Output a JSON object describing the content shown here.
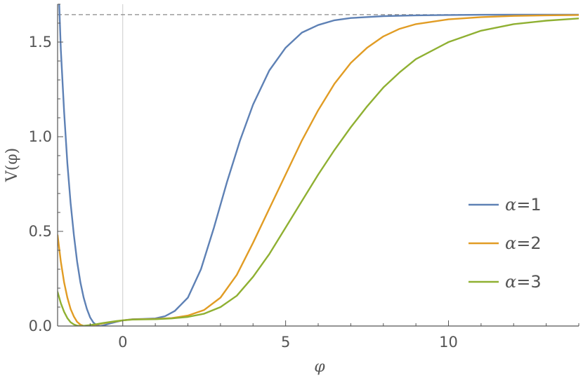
{
  "chart_data": {
    "type": "line",
    "title": "",
    "xlabel": "φ",
    "ylabel": "V(φ)",
    "xlim": [
      -2,
      14
    ],
    "ylim": [
      0,
      1.7
    ],
    "x_ticks": [
      0,
      5,
      10
    ],
    "y_ticks": [
      0.0,
      0.5,
      1.0,
      1.5
    ],
    "x_tick_labels": [
      "0",
      "5",
      "10"
    ],
    "y_tick_labels": [
      "0.0",
      "0.5",
      "1.0",
      "1.5"
    ],
    "asymptote": 1.645,
    "grid": false,
    "legend_position": "right",
    "colors": {
      "alpha1": "#5e81b5",
      "alpha2": "#e19c24",
      "alpha3": "#8fb032",
      "asymptote": "#888888",
      "frame": "#555555",
      "zero_line": "#cccccc"
    },
    "series": [
      {
        "name": "α=1",
        "color": "#5e81b5",
        "points": [
          [
            -1.95,
            1.7
          ],
          [
            -1.9,
            1.46
          ],
          [
            -1.8,
            1.13
          ],
          [
            -1.7,
            0.86
          ],
          [
            -1.6,
            0.65
          ],
          [
            -1.5,
            0.48
          ],
          [
            -1.4,
            0.34
          ],
          [
            -1.3,
            0.23
          ],
          [
            -1.2,
            0.15
          ],
          [
            -1.1,
            0.09
          ],
          [
            -1.0,
            0.045
          ],
          [
            -0.9,
            0.018
          ],
          [
            -0.8,
            0.004
          ],
          [
            -0.7,
            0.0
          ],
          [
            -0.6,
            0.003
          ],
          [
            -0.4,
            0.013
          ],
          [
            -0.2,
            0.022
          ],
          [
            0.0,
            0.03
          ],
          [
            0.3,
            0.036
          ],
          [
            0.6,
            0.037
          ],
          [
            1.0,
            0.04
          ],
          [
            1.3,
            0.052
          ],
          [
            1.6,
            0.08
          ],
          [
            2.0,
            0.15
          ],
          [
            2.4,
            0.3
          ],
          [
            2.8,
            0.52
          ],
          [
            3.2,
            0.76
          ],
          [
            3.6,
            0.98
          ],
          [
            4.0,
            1.17
          ],
          [
            4.5,
            1.35
          ],
          [
            5.0,
            1.47
          ],
          [
            5.5,
            1.55
          ],
          [
            6.0,
            1.59
          ],
          [
            6.5,
            1.615
          ],
          [
            7.0,
            1.627
          ],
          [
            8.0,
            1.637
          ],
          [
            9.0,
            1.641
          ],
          [
            10.0,
            1.643
          ],
          [
            11.0,
            1.644
          ],
          [
            12.0,
            1.645
          ],
          [
            13.0,
            1.645
          ],
          [
            14.0,
            1.645
          ]
        ]
      },
      {
        "name": "α=2",
        "color": "#e19c24",
        "points": [
          [
            -2.0,
            0.48
          ],
          [
            -1.9,
            0.34
          ],
          [
            -1.8,
            0.23
          ],
          [
            -1.7,
            0.15
          ],
          [
            -1.6,
            0.09
          ],
          [
            -1.5,
            0.05
          ],
          [
            -1.4,
            0.022
          ],
          [
            -1.3,
            0.007
          ],
          [
            -1.2,
            0.001
          ],
          [
            -1.1,
            0.0
          ],
          [
            -1.0,
            0.002
          ],
          [
            -0.8,
            0.008
          ],
          [
            -0.6,
            0.014
          ],
          [
            -0.4,
            0.02
          ],
          [
            -0.2,
            0.025
          ],
          [
            0.0,
            0.03
          ],
          [
            0.3,
            0.035
          ],
          [
            0.6,
            0.036
          ],
          [
            1.0,
            0.037
          ],
          [
            1.5,
            0.042
          ],
          [
            2.0,
            0.055
          ],
          [
            2.5,
            0.085
          ],
          [
            3.0,
            0.15
          ],
          [
            3.5,
            0.27
          ],
          [
            4.0,
            0.44
          ],
          [
            4.5,
            0.62
          ],
          [
            5.0,
            0.8
          ],
          [
            5.5,
            0.98
          ],
          [
            6.0,
            1.14
          ],
          [
            6.5,
            1.28
          ],
          [
            7.0,
            1.39
          ],
          [
            7.5,
            1.47
          ],
          [
            8.0,
            1.53
          ],
          [
            8.5,
            1.57
          ],
          [
            9.0,
            1.595
          ],
          [
            10.0,
            1.62
          ],
          [
            11.0,
            1.632
          ],
          [
            12.0,
            1.638
          ],
          [
            13.0,
            1.641
          ],
          [
            14.0,
            1.643
          ]
        ]
      },
      {
        "name": "α=3",
        "color": "#8fb032",
        "points": [
          [
            -2.0,
            0.18
          ],
          [
            -1.9,
            0.12
          ],
          [
            -1.8,
            0.075
          ],
          [
            -1.7,
            0.042
          ],
          [
            -1.6,
            0.02
          ],
          [
            -1.5,
            0.008
          ],
          [
            -1.4,
            0.002
          ],
          [
            -1.3,
            0.0
          ],
          [
            -1.2,
            0.001
          ],
          [
            -1.0,
            0.005
          ],
          [
            -0.8,
            0.01
          ],
          [
            -0.6,
            0.016
          ],
          [
            -0.4,
            0.021
          ],
          [
            -0.2,
            0.026
          ],
          [
            0.0,
            0.03
          ],
          [
            0.3,
            0.034
          ],
          [
            0.6,
            0.035
          ],
          [
            1.0,
            0.036
          ],
          [
            1.5,
            0.04
          ],
          [
            2.0,
            0.048
          ],
          [
            2.5,
            0.065
          ],
          [
            3.0,
            0.1
          ],
          [
            3.5,
            0.16
          ],
          [
            4.0,
            0.26
          ],
          [
            4.5,
            0.38
          ],
          [
            5.0,
            0.52
          ],
          [
            5.5,
            0.66
          ],
          [
            6.0,
            0.8
          ],
          [
            6.5,
            0.93
          ],
          [
            7.0,
            1.05
          ],
          [
            7.5,
            1.16
          ],
          [
            8.0,
            1.26
          ],
          [
            8.5,
            1.34
          ],
          [
            9.0,
            1.41
          ],
          [
            10.0,
            1.5
          ],
          [
            11.0,
            1.56
          ],
          [
            12.0,
            1.595
          ],
          [
            13.0,
            1.613
          ],
          [
            14.0,
            1.625
          ]
        ]
      }
    ]
  },
  "legend": [
    {
      "symbol": "α",
      "eq": "=1"
    },
    {
      "symbol": "α",
      "eq": "=2"
    },
    {
      "symbol": "α",
      "eq": "=3"
    }
  ]
}
